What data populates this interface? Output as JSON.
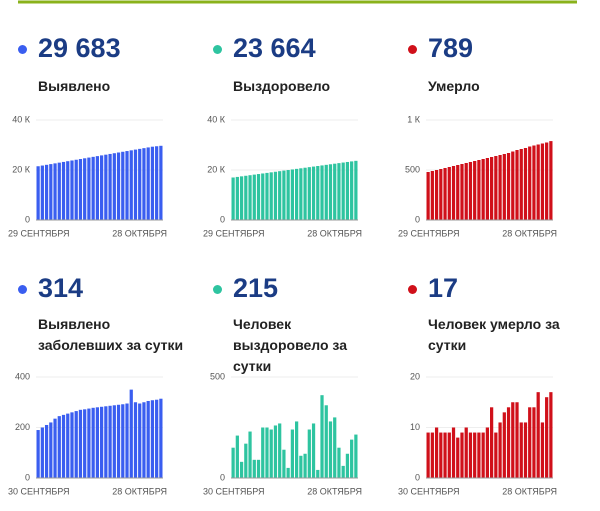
{
  "chart_data": [
    {
      "type": "bar",
      "headline": "29 683",
      "title": "Выявлено",
      "color": "#3a5ef0",
      "grid": true,
      "categories": [
        "29 СЕНТЯБРЯ",
        null,
        null,
        null,
        null,
        null,
        null,
        null,
        null,
        null,
        null,
        null,
        null,
        null,
        null,
        null,
        null,
        null,
        null,
        null,
        null,
        null,
        null,
        null,
        null,
        null,
        null,
        null,
        null,
        "28 ОКТЯБРЯ"
      ],
      "values": [
        21500,
        21780,
        22070,
        22360,
        22650,
        22940,
        23230,
        23520,
        23810,
        24100,
        24390,
        24680,
        24970,
        25260,
        25550,
        25840,
        26130,
        26420,
        26710,
        27000,
        27290,
        27580,
        27870,
        28160,
        28450,
        28740,
        29030,
        29320,
        29500,
        29683
      ],
      "ylim": [
        0,
        40000
      ],
      "yticks": [
        0,
        {
          "value": 20000,
          "label": "20 К"
        },
        {
          "value": 40000,
          "label": "40 К"
        }
      ]
    },
    {
      "type": "bar",
      "headline": "23 664",
      "title": "Выздоровело",
      "color": "#2ec4a0",
      "grid": true,
      "categories": [
        "29 СЕНТЯБРЯ",
        null,
        null,
        null,
        null,
        null,
        null,
        null,
        null,
        null,
        null,
        null,
        null,
        null,
        null,
        null,
        null,
        null,
        null,
        null,
        null,
        null,
        null,
        null,
        null,
        null,
        null,
        null,
        null,
        "28 ОКТЯБРЯ"
      ],
      "values": [
        17000,
        17230,
        17460,
        17690,
        17920,
        18150,
        18380,
        18610,
        18840,
        19070,
        19300,
        19530,
        19760,
        19990,
        20220,
        20450,
        20680,
        20910,
        21140,
        21370,
        21600,
        21830,
        22060,
        22290,
        22520,
        22750,
        22980,
        23210,
        23440,
        23664
      ],
      "ylim": [
        0,
        40000
      ],
      "yticks": [
        0,
        {
          "value": 20000,
          "label": "20 К"
        },
        {
          "value": 40000,
          "label": "40 К"
        }
      ]
    },
    {
      "type": "bar",
      "headline": "789",
      "title": "Умерло",
      "color": "#d0101a",
      "grid": true,
      "categories": [
        "29 СЕНТЯБРЯ",
        null,
        null,
        null,
        null,
        null,
        null,
        null,
        null,
        null,
        null,
        null,
        null,
        null,
        null,
        null,
        null,
        null,
        null,
        null,
        null,
        null,
        null,
        null,
        null,
        null,
        null,
        null,
        null,
        "28 ОКТЯБРЯ"
      ],
      "values": [
        480,
        490,
        500,
        510,
        520,
        530,
        540,
        550,
        560,
        570,
        580,
        590,
        600,
        610,
        620,
        630,
        640,
        650,
        660,
        670,
        685,
        700,
        710,
        720,
        735,
        745,
        755,
        765,
        775,
        789
      ],
      "ylim": [
        0,
        1000
      ],
      "yticks": [
        0,
        500,
        {
          "value": 1000,
          "label": "1 К"
        }
      ]
    },
    {
      "type": "bar",
      "headline": "314",
      "title": "Выявлено заболевших за сутки",
      "color": "#3a5ef0",
      "grid": true,
      "categories": [
        "30 СЕНТЯБРЯ",
        null,
        null,
        null,
        null,
        null,
        null,
        null,
        null,
        null,
        null,
        null,
        null,
        null,
        null,
        null,
        null,
        null,
        null,
        null,
        null,
        null,
        null,
        null,
        null,
        null,
        null,
        null,
        null,
        "28 ОКТЯБРЯ"
      ],
      "values": [
        190,
        200,
        210,
        220,
        235,
        245,
        250,
        255,
        260,
        265,
        270,
        272,
        275,
        278,
        280,
        282,
        284,
        286,
        288,
        290,
        292,
        295,
        350,
        300,
        295,
        300,
        305,
        308,
        310,
        314
      ],
      "ylim": [
        0,
        400
      ],
      "yticks": [
        0,
        200,
        400
      ]
    },
    {
      "type": "bar",
      "headline": "215",
      "title": "Человек выздоровело за сутки",
      "color": "#2ec4a0",
      "grid": true,
      "categories": [
        "30 СЕНТЯБРЯ",
        null,
        null,
        null,
        null,
        null,
        null,
        null,
        null,
        null,
        null,
        null,
        null,
        null,
        null,
        null,
        null,
        null,
        null,
        null,
        null,
        null,
        null,
        null,
        null,
        null,
        null,
        null,
        null,
        "28 ОКТЯБРЯ"
      ],
      "values": [
        150,
        210,
        80,
        170,
        230,
        90,
        90,
        250,
        250,
        240,
        260,
        270,
        140,
        50,
        240,
        280,
        110,
        120,
        240,
        270,
        40,
        410,
        360,
        280,
        300,
        150,
        60,
        120,
        190,
        215
      ],
      "ylim": [
        0,
        500
      ],
      "yticks": [
        0,
        500
      ]
    },
    {
      "type": "bar",
      "headline": "17",
      "title": "Человек умерло за сутки",
      "color": "#d0101a",
      "grid": true,
      "categories": [
        "30 СЕНТЯБРЯ",
        null,
        null,
        null,
        null,
        null,
        null,
        null,
        null,
        null,
        null,
        null,
        null,
        null,
        null,
        null,
        null,
        null,
        null,
        null,
        null,
        null,
        null,
        null,
        null,
        null,
        null,
        null,
        null,
        "28 ОКТЯБРЯ"
      ],
      "values": [
        9,
        9,
        10,
        9,
        9,
        9,
        10,
        8,
        9,
        10,
        9,
        9,
        9,
        9,
        10,
        14,
        9,
        11,
        13,
        14,
        15,
        15,
        11,
        11,
        14,
        14,
        17,
        11,
        16,
        17
      ],
      "ylim": [
        0,
        20
      ],
      "yticks": [
        0,
        10,
        20
      ]
    }
  ]
}
